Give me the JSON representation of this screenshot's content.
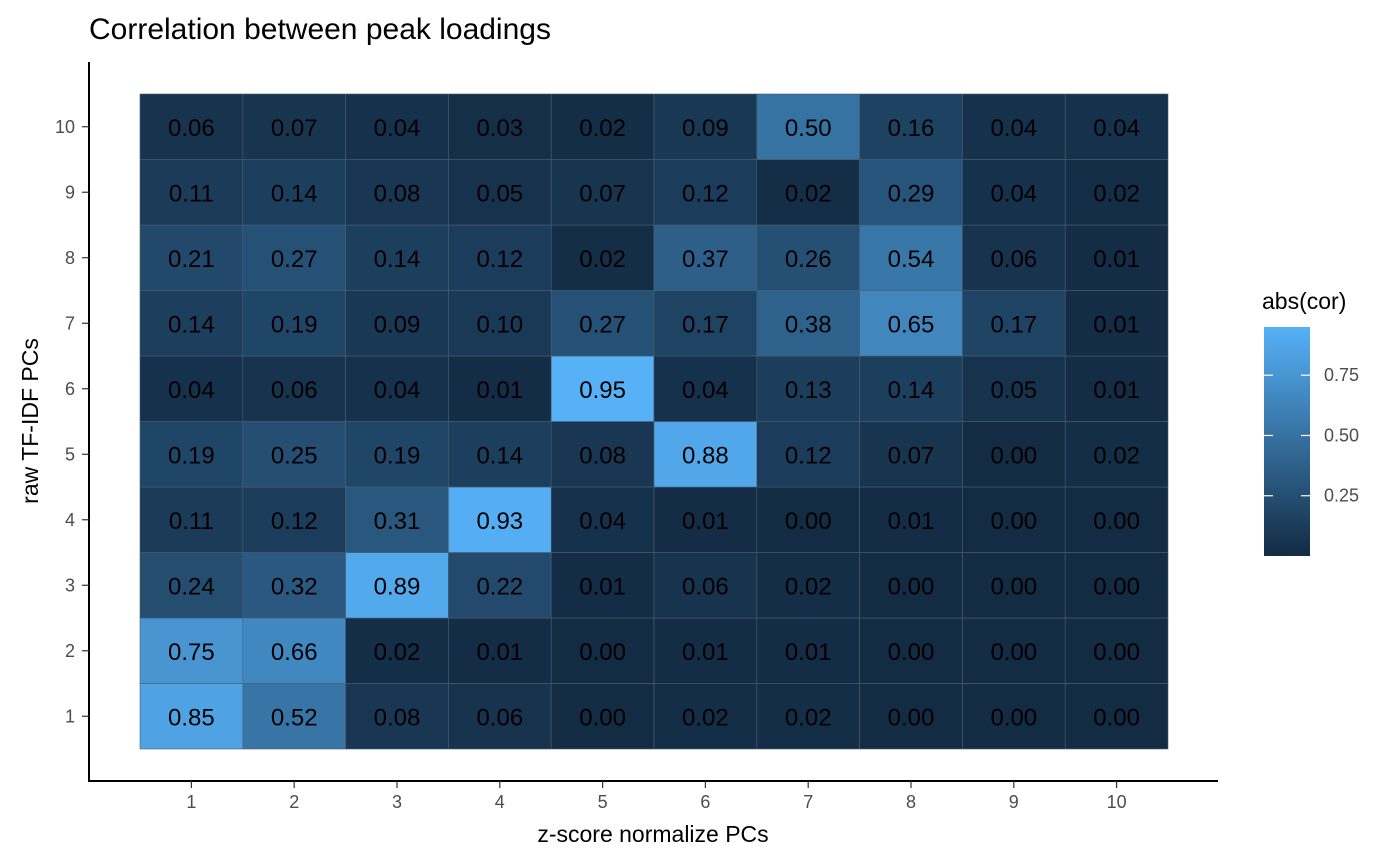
{
  "chart_data": {
    "type": "heatmap",
    "title": "Correlation between peak loadings",
    "xlabel": "z-score normalize PCs",
    "ylabel": "raw TF-IDF PCs",
    "x_categories": [
      "1",
      "2",
      "3",
      "4",
      "5",
      "6",
      "7",
      "8",
      "9",
      "10"
    ],
    "y_categories": [
      "1",
      "2",
      "3",
      "4",
      "5",
      "6",
      "7",
      "8",
      "9",
      "10"
    ],
    "values": [
      [
        0.85,
        0.52,
        0.08,
        0.06,
        0.0,
        0.02,
        0.02,
        0.0,
        0.0,
        0.0
      ],
      [
        0.75,
        0.66,
        0.02,
        0.01,
        0.0,
        0.01,
        0.01,
        0.0,
        0.0,
        0.0
      ],
      [
        0.24,
        0.32,
        0.89,
        0.22,
        0.01,
        0.06,
        0.02,
        0.0,
        0.0,
        0.0
      ],
      [
        0.11,
        0.12,
        0.31,
        0.93,
        0.04,
        0.01,
        0.0,
        0.01,
        0.0,
        0.0
      ],
      [
        0.19,
        0.25,
        0.19,
        0.14,
        0.08,
        0.88,
        0.12,
        0.07,
        0.0,
        0.02
      ],
      [
        0.04,
        0.06,
        0.04,
        0.01,
        0.95,
        0.04,
        0.13,
        0.14,
        0.05,
        0.01
      ],
      [
        0.14,
        0.19,
        0.09,
        0.1,
        0.27,
        0.17,
        0.38,
        0.65,
        0.17,
        0.01
      ],
      [
        0.21,
        0.27,
        0.14,
        0.12,
        0.02,
        0.37,
        0.26,
        0.54,
        0.06,
        0.01
      ],
      [
        0.11,
        0.14,
        0.08,
        0.05,
        0.07,
        0.12,
        0.02,
        0.29,
        0.04,
        0.02
      ],
      [
        0.06,
        0.07,
        0.04,
        0.03,
        0.02,
        0.09,
        0.5,
        0.16,
        0.04,
        0.04
      ]
    ],
    "value_format": "2 decimals",
    "legend": {
      "title": "abs(cor)",
      "placement": "right",
      "breaks": [
        0.25,
        0.5,
        0.75
      ],
      "break_labels": [
        "0.25",
        "0.50",
        "0.75"
      ],
      "range": [
        0,
        0.95
      ],
      "low_color": "#132b43",
      "high_color": "#56b1f7"
    },
    "grid": false
  }
}
